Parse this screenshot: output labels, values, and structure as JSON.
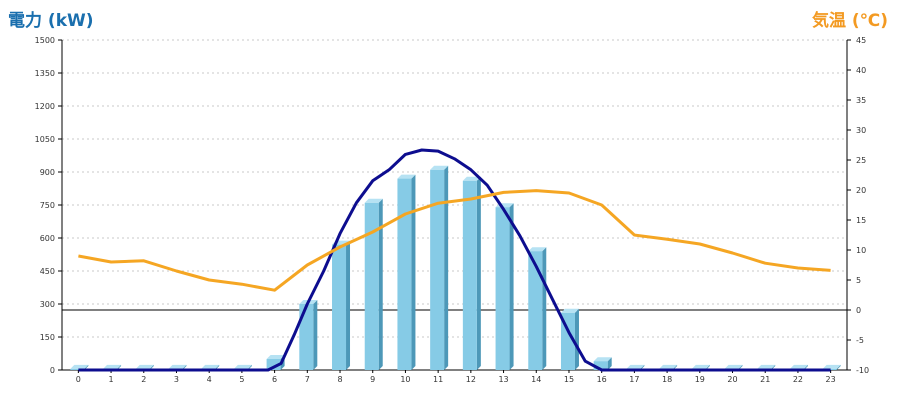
{
  "titles": {
    "left": "電力 (kW)",
    "right": "気温 (℃)"
  },
  "colors": {
    "bar_front": "#86cbe6",
    "bar_side": "#4d98b8",
    "bar_top": "#b6e2f3",
    "power_line": "#0d0d8f",
    "temp_line": "#f5a623",
    "grid": "#c8c8c8"
  },
  "chart_data": {
    "type": "bar+line",
    "x": [
      0,
      1,
      2,
      3,
      4,
      5,
      6,
      7,
      8,
      9,
      10,
      11,
      12,
      13,
      14,
      15,
      16,
      17,
      18,
      19,
      20,
      21,
      22,
      23
    ],
    "yleft": {
      "label": "電力 (kW)",
      "lim": [
        0,
        1500
      ],
      "ticks": [
        0,
        150,
        300,
        450,
        600,
        750,
        900,
        1050,
        1200,
        1350,
        1500
      ]
    },
    "yright": {
      "label": "気温 (℃)",
      "lim": [
        -10,
        45
      ],
      "ticks": [
        -10,
        -5,
        0,
        5,
        10,
        15,
        20,
        25,
        30,
        35,
        40,
        45
      ]
    },
    "series": [
      {
        "type": "bar",
        "axis": "left",
        "values": [
          5,
          5,
          5,
          5,
          5,
          5,
          50,
          300,
          570,
          760,
          870,
          910,
          860,
          740,
          540,
          260,
          40,
          5,
          5,
          5,
          5,
          5,
          5,
          5
        ]
      },
      {
        "type": "line",
        "axis": "left",
        "x": [
          0,
          1,
          2,
          3,
          4,
          5,
          5.8,
          6.2,
          6.6,
          7,
          7.5,
          8,
          8.5,
          9,
          9.5,
          10,
          10.5,
          11,
          11.5,
          12,
          12.5,
          13,
          13.5,
          14,
          14.5,
          15,
          15.5,
          16,
          16.5,
          17,
          18,
          19,
          20,
          21,
          22,
          23
        ],
        "values": [
          0,
          0,
          0,
          0,
          0,
          0,
          0,
          30,
          160,
          300,
          450,
          620,
          760,
          860,
          910,
          980,
          1000,
          995,
          960,
          910,
          840,
          730,
          610,
          470,
          320,
          170,
          40,
          0,
          0,
          0,
          0,
          0,
          0,
          0,
          0,
          0
        ]
      },
      {
        "type": "line",
        "axis": "right",
        "values": [
          9,
          8,
          8.2,
          6.5,
          5,
          4.3,
          3.3,
          7.5,
          10.5,
          13,
          16,
          17.8,
          18.5,
          19.6,
          19.9,
          19.5,
          17.5,
          12.5,
          11.8,
          11,
          9.5,
          7.8,
          7,
          6.6
        ]
      }
    ]
  }
}
